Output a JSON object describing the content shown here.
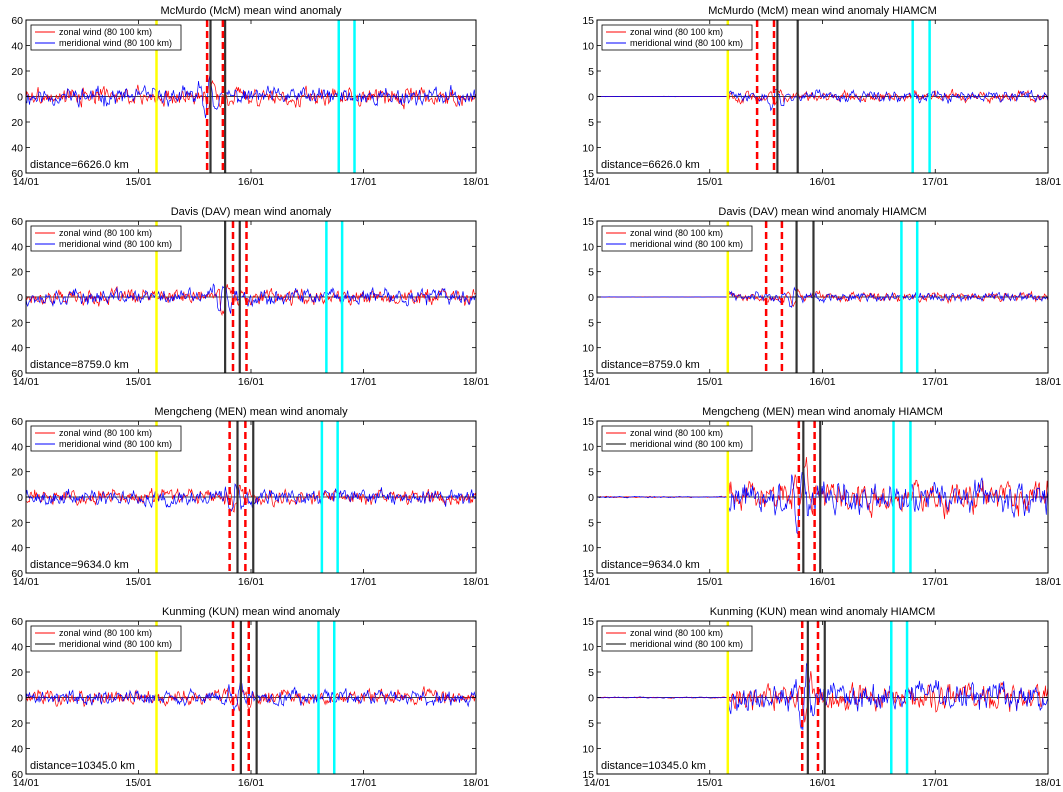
{
  "figure": {
    "x_tick_labels": [
      "14/01",
      "15/01",
      "16/01",
      "17/01",
      "18/01"
    ],
    "legend": {
      "zonal": "zonal wind (80  100 km)",
      "meridional": "meridional wind (80  100 km)"
    },
    "colors": {
      "zonal": "#ff0000",
      "meridional": "#0000ff",
      "meridional_alt": "#000000",
      "yellow_line": "#ffff00",
      "cyan_line": "#00ffff",
      "red_dashed": "#ff0000",
      "black_line": "#333333"
    }
  },
  "chart_data": [
    {
      "type": "line",
      "title": "McMurdo (McM)  mean wind anomaly",
      "distance_label": "distance=6626.0 km",
      "ylim": [
        -60,
        60
      ],
      "yticks": [
        60,
        40,
        20,
        0,
        -20,
        -40,
        -60
      ],
      "y_tick_labels": [
        "60",
        "40",
        "20",
        "0",
        "20",
        "40",
        "60"
      ],
      "xlim": [
        0,
        4
      ],
      "amplitude": 8,
      "red_dashed": [
        1.61,
        1.75
      ],
      "black_lines": [
        1.64,
        1.77
      ],
      "yellow_lines": [
        1.16
      ],
      "cyan_lines": [
        2.78,
        2.92
      ],
      "meridional_color_key": "meridional"
    },
    {
      "type": "line",
      "title": "McMurdo (McM)  mean wind anomaly    HIAMCM",
      "distance_label": "distance=6626.0 km",
      "ylim": [
        -15,
        15
      ],
      "yticks": [
        15,
        10,
        5,
        0,
        -5,
        -10,
        -15
      ],
      "y_tick_labels": [
        "15",
        "10",
        "5",
        "0",
        "5",
        "10",
        "15"
      ],
      "xlim": [
        0,
        4
      ],
      "amplitude": 1.2,
      "red_dashed": [
        1.42,
        1.57
      ],
      "black_lines": [
        1.6,
        1.78
      ],
      "yellow_lines": [
        1.16
      ],
      "cyan_lines": [
        2.8,
        2.95
      ],
      "meridional_color_key": "meridional"
    },
    {
      "type": "line",
      "title": "Davis (DAV)  mean wind anomaly",
      "distance_label": "distance=8759.0 km",
      "ylim": [
        -60,
        60
      ],
      "yticks": [
        60,
        40,
        20,
        0,
        -20,
        -40,
        -60
      ],
      "y_tick_labels": [
        "60",
        "40",
        "20",
        "0",
        "20",
        "40",
        "60"
      ],
      "xlim": [
        0,
        4
      ],
      "amplitude": 7,
      "red_dashed": [
        1.84,
        1.96
      ],
      "black_lines": [
        1.77,
        1.9
      ],
      "yellow_lines": [
        1.16
      ],
      "cyan_lines": [
        2.67,
        2.81
      ],
      "meridional_color_key": "meridional"
    },
    {
      "type": "line",
      "title": "Davis (DAV)  mean wind anomaly    HIAMCM",
      "distance_label": "distance=8759.0 km",
      "ylim": [
        -15,
        15
      ],
      "yticks": [
        15,
        10,
        5,
        0,
        -5,
        -10,
        -15
      ],
      "y_tick_labels": [
        "15",
        "10",
        "5",
        "0",
        "5",
        "10",
        "15"
      ],
      "xlim": [
        0,
        4
      ],
      "amplitude": 1.0,
      "red_dashed": [
        1.5,
        1.64
      ],
      "black_lines": [
        1.77,
        1.92
      ],
      "yellow_lines": [
        1.16
      ],
      "cyan_lines": [
        2.7,
        2.84
      ],
      "meridional_color_key": "meridional"
    },
    {
      "type": "line",
      "title": "Mengcheng (MEN)  mean wind anomaly",
      "distance_label": "distance=9634.0 km",
      "ylim": [
        -60,
        60
      ],
      "yticks": [
        60,
        40,
        20,
        0,
        -20,
        -40,
        -60
      ],
      "y_tick_labels": [
        "60",
        "40",
        "20",
        "0",
        "20",
        "40",
        "60"
      ],
      "xlim": [
        0,
        4
      ],
      "amplitude": 7,
      "red_dashed": [
        1.81,
        1.95
      ],
      "black_lines": [
        1.88,
        2.02
      ],
      "yellow_lines": [
        1.16
      ],
      "cyan_lines": [
        2.63,
        2.77
      ],
      "meridional_color_key": "meridional"
    },
    {
      "type": "line",
      "title": "Mengcheng (MEN)  mean wind anomaly    HIAMCM",
      "distance_label": "distance=9634.0 km",
      "ylim": [
        -15,
        15
      ],
      "yticks": [
        15,
        10,
        5,
        0,
        -5,
        -10,
        -15
      ],
      "y_tick_labels": [
        "15",
        "10",
        "5",
        "0",
        "5",
        "10",
        "15"
      ],
      "xlim": [
        0,
        4
      ],
      "amplitude": 3.5,
      "red_dashed": [
        1.79,
        1.93
      ],
      "black_lines": [
        1.83,
        1.98
      ],
      "yellow_lines": [
        1.16
      ],
      "cyan_lines": [
        2.63,
        2.78
      ],
      "meridional_color_key": "meridional_alt"
    },
    {
      "type": "line",
      "title": "Kunming (KUN)  mean wind anomaly",
      "distance_label": "distance=10345.0 km",
      "ylim": [
        -60,
        60
      ],
      "yticks": [
        60,
        40,
        20,
        0,
        -20,
        -40,
        -60
      ],
      "y_tick_labels": [
        "60",
        "40",
        "20",
        "0",
        "20",
        "40",
        "60"
      ],
      "xlim": [
        0,
        4
      ],
      "amplitude": 7,
      "red_dashed": [
        1.84,
        1.98
      ],
      "black_lines": [
        1.91,
        2.05
      ],
      "yellow_lines": [
        1.16
      ],
      "cyan_lines": [
        2.6,
        2.74
      ],
      "meridional_color_key": "meridional_alt"
    },
    {
      "type": "line",
      "title": "Kunming (KUN)  mean wind anomaly    HIAMCM",
      "distance_label": "distance=10345.0 km",
      "ylim": [
        -15,
        15
      ],
      "yticks": [
        15,
        10,
        5,
        0,
        -5,
        -10,
        -15
      ],
      "y_tick_labels": [
        "15",
        "10",
        "5",
        "0",
        "5",
        "10",
        "15"
      ],
      "xlim": [
        0,
        4
      ],
      "amplitude": 3.0,
      "red_dashed": [
        1.82,
        1.96
      ],
      "black_lines": [
        1.87,
        2.02
      ],
      "yellow_lines": [
        1.16
      ],
      "cyan_lines": [
        2.61,
        2.75
      ],
      "meridional_color_key": "meridional_alt"
    }
  ]
}
